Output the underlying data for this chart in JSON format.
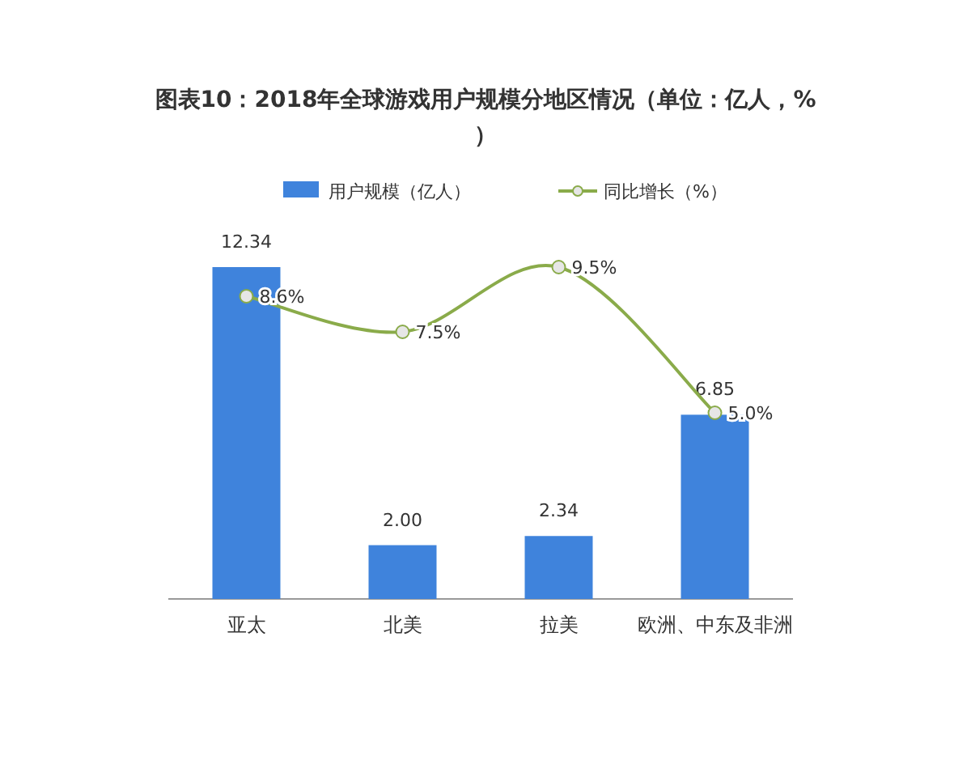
{
  "chart_data": {
    "type": "bar",
    "title": "图表10：2018年全球游戏用户规模分地区情况（单位：亿人，%）",
    "categories": [
      "亚太",
      "北美",
      "拉美",
      "欧洲、中东及非洲"
    ],
    "series": [
      {
        "name": "用户规模（亿人）",
        "color": "#3f83dc",
        "values": [
          12.34,
          2.0,
          2.34,
          6.85
        ],
        "value_labels": [
          "12.34",
          "2.00",
          "2.34",
          "6.85"
        ]
      },
      {
        "name": "同比增长（%）",
        "type": "line",
        "axis": "y2",
        "color": "#8aab4a",
        "values": [
          8.6,
          7.5,
          9.5,
          5.0
        ],
        "value_labels": [
          "8.6%",
          "7.5%",
          "9.5%",
          "5.0%"
        ]
      }
    ],
    "legend": "top",
    "marker": "circle",
    "grid": false
  }
}
